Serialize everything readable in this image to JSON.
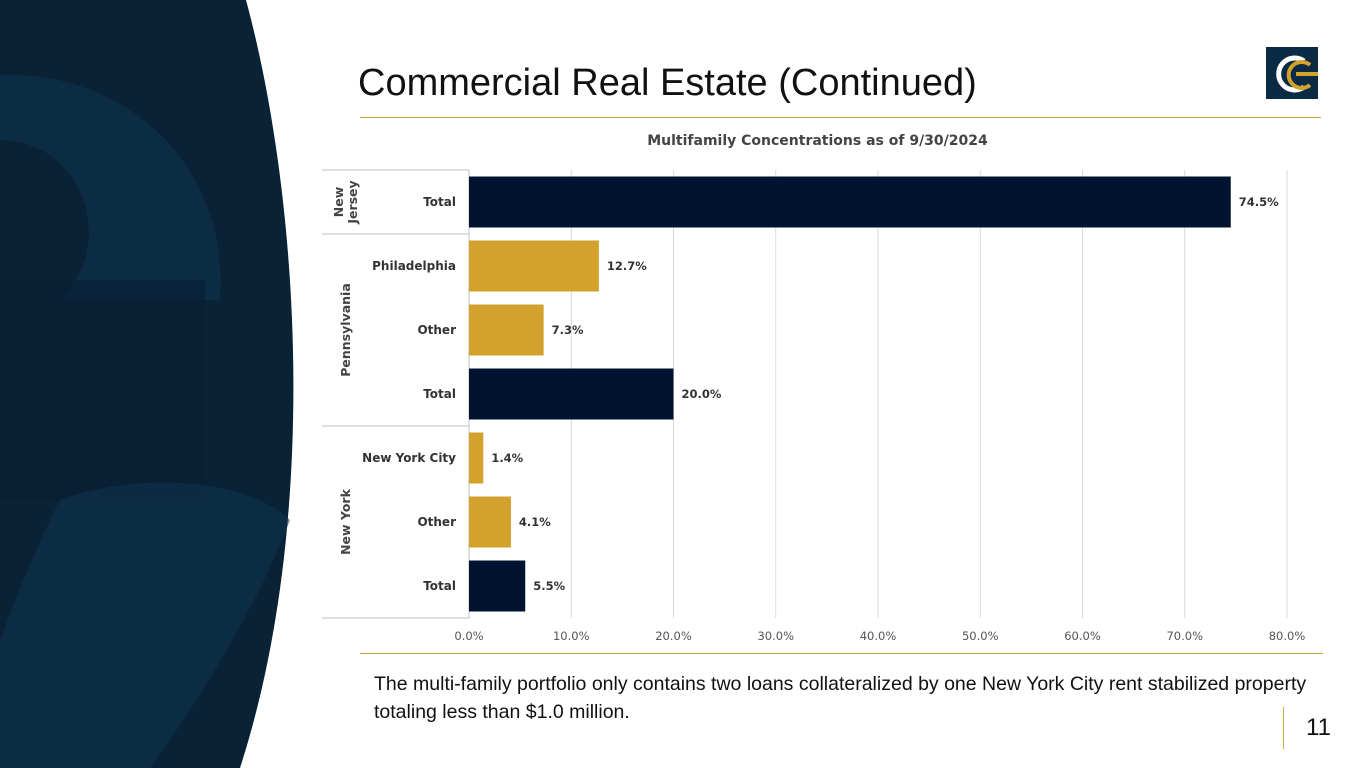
{
  "slide": {
    "title": "Commercial Real Estate (Continued)",
    "note": "The multi-family portfolio only contains two loans collateralized by one New York City rent stabilized property totaling less than $1.0 million.",
    "page_number": "11"
  },
  "colors": {
    "navy": "#021330",
    "gold": "#d3a22d",
    "rule_gold": "#c9a84a",
    "sidebar_dark": "#0a2236"
  },
  "chart_data": {
    "type": "bar",
    "orientation": "horizontal",
    "title": "Multifamily Concentrations as of 9/30/2024",
    "xlim": [
      0,
      80
    ],
    "xticks": [
      "0.0%",
      "10.0%",
      "20.0%",
      "30.0%",
      "40.0%",
      "50.0%",
      "60.0%",
      "70.0%",
      "80.0%"
    ],
    "xtick_values": [
      0,
      10,
      20,
      30,
      40,
      50,
      60,
      70,
      80
    ],
    "grid": true,
    "groups": [
      {
        "name": "New Jersey",
        "name_lines": [
          "New",
          "Jersey"
        ],
        "size": 1
      },
      {
        "name": "Pennsylvania",
        "name_lines": [
          "Pennsylvania"
        ],
        "size": 3
      },
      {
        "name": "New York",
        "name_lines": [
          "New York"
        ],
        "size": 3
      }
    ],
    "bars": [
      {
        "group": "New Jersey",
        "category": "Total",
        "value": 74.5,
        "label": "74.5%",
        "kind": "total"
      },
      {
        "group": "Pennsylvania",
        "category": "Philadelphia",
        "value": 12.7,
        "label": "12.7%",
        "kind": "sub"
      },
      {
        "group": "Pennsylvania",
        "category": "Other",
        "value": 7.3,
        "label": "7.3%",
        "kind": "sub"
      },
      {
        "group": "Pennsylvania",
        "category": "Total",
        "value": 20.0,
        "label": "20.0%",
        "kind": "total"
      },
      {
        "group": "New York",
        "category": "New York City",
        "value": 1.4,
        "label": "1.4%",
        "kind": "sub"
      },
      {
        "group": "New York",
        "category": "Other",
        "value": 4.1,
        "label": "4.1%",
        "kind": "sub"
      },
      {
        "group": "New York",
        "category": "Total",
        "value": 5.5,
        "label": "5.5%",
        "kind": "total"
      }
    ]
  }
}
